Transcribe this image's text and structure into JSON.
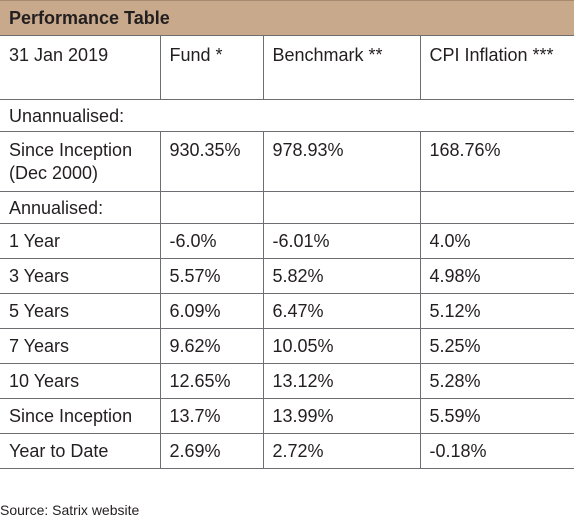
{
  "title": "Performance Table",
  "headers": [
    "31 Jan 2019",
    "Fund *",
    "Benchmark **",
    "CPI Inflation ***"
  ],
  "sections": {
    "unannualised": "Unannualised:",
    "annualised": "Annualised:"
  },
  "inception_row": {
    "label_line1": "Since Inception",
    "label_line2": "(Dec 2000)",
    "fund": "930.35%",
    "benchmark": "978.93%",
    "cpi": "168.76%"
  },
  "rows": [
    {
      "label": "1 Year",
      "fund": "-6.0%",
      "benchmark": "-6.01%",
      "cpi": "4.0%"
    },
    {
      "label": "3 Years",
      "fund": "5.57%",
      "benchmark": "5.82%",
      "cpi": "4.98%"
    },
    {
      "label": "5 Years",
      "fund": "6.09%",
      "benchmark": "6.47%",
      "cpi": "5.12%"
    },
    {
      "label": "7 Years",
      "fund": "9.62%",
      "benchmark": "10.05%",
      "cpi": "5.25%"
    },
    {
      "label": "10 Years",
      "fund": "12.65%",
      "benchmark": "13.12%",
      "cpi": "5.28%"
    },
    {
      "label": "Since Inception",
      "fund": "13.7%",
      "benchmark": "13.99%",
      "cpi": "5.59%"
    },
    {
      "label": "Year to Date",
      "fund": "2.69%",
      "benchmark": "2.72%",
      "cpi": "-0.18%"
    }
  ],
  "source": "Source: Satrix website",
  "colors": {
    "title_bar": "#c8a98b",
    "grid": "#6d6e71",
    "text": "#231f20"
  }
}
